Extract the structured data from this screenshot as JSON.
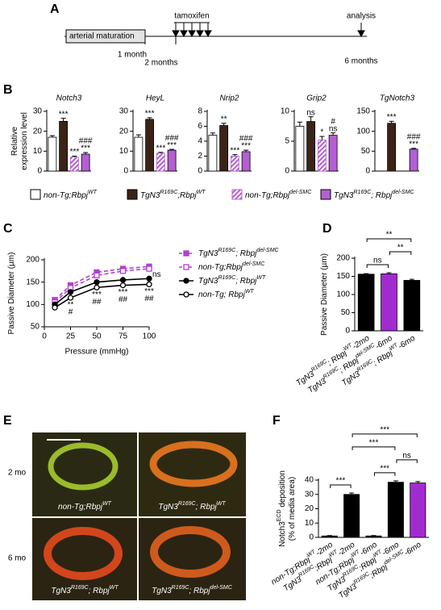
{
  "panel_labels": [
    "A",
    "B",
    "C",
    "D",
    "E",
    "F"
  ],
  "timeline": {
    "box_label": "arterial maturation",
    "drug": "tamoxifen",
    "endpoint": "analysis",
    "times": [
      "1 month",
      "2 months",
      "6 months"
    ]
  },
  "legend_b": {
    "entries": [
      {
        "name": [
          "non-Tg;Rbpj",
          "WT"
        ],
        "color": "#ffffff",
        "pattern": "solid"
      },
      {
        "name": [
          "TgN3",
          "R169C",
          ";Rbpj",
          "WT"
        ],
        "color": "#3b2417",
        "pattern": "solid"
      },
      {
        "name": [
          "non-Tg;Rbpj",
          "del-SMC"
        ],
        "color": "#b45fd2",
        "pattern": "hatch"
      },
      {
        "name": [
          "TgN3",
          "R169C",
          "; Rbpj",
          "del-SMC"
        ],
        "color": "#b45fd2",
        "pattern": "solid"
      }
    ]
  },
  "images": {
    "row_labels": [
      "2 mo",
      "6 mo"
    ],
    "captions": [
      [
        "non-Tg;Rbpj",
        "WT"
      ],
      [
        "TgN3",
        "R169C",
        "; Rbpj",
        "WT"
      ],
      [
        "TgN3",
        "R169C",
        "; Rbpj",
        "WT"
      ],
      [
        "TgN3",
        "R169C",
        "; Rbpj",
        "del-SMC"
      ]
    ]
  },
  "chart_data": [
    {
      "type": "bar",
      "title": "Notch3",
      "ylabel": [
        [
          "Relative"
        ],
        [
          "expression level"
        ]
      ],
      "values": [
        17,
        25,
        7,
        8.5
      ],
      "errors": [
        0.8,
        1.5,
        0.5,
        0.8
      ],
      "ylim": [
        0,
        30
      ],
      "yticks": [
        0,
        10,
        20,
        30
      ],
      "annotations": [
        [],
        [
          "***"
        ],
        [
          "***"
        ],
        [
          "###",
          "***"
        ]
      ]
    },
    {
      "type": "bar",
      "title": "HeyL",
      "values": [
        17,
        26,
        9,
        10.5
      ],
      "errors": [
        1.2,
        0.8,
        0.4,
        0.4
      ],
      "ylim": [
        0,
        30
      ],
      "yticks": [
        0,
        10,
        20,
        30
      ],
      "annotations": [
        [],
        [
          "***"
        ],
        [
          "***"
        ],
        [
          "###",
          "***"
        ]
      ]
    },
    {
      "type": "bar",
      "title": "Nrip2",
      "values": [
        4.8,
        6.1,
        2,
        2.6
      ],
      "errors": [
        0.3,
        0.3,
        0.2,
        0.2
      ],
      "ylim": [
        0,
        8
      ],
      "yticks": [
        0,
        2,
        4,
        6,
        8
      ],
      "annotations": [
        [],
        [
          "**"
        ],
        [
          "***"
        ],
        [
          "###",
          "***"
        ]
      ]
    },
    {
      "type": "bar",
      "title": "Grip2",
      "values": [
        7.5,
        8.3,
        5.2,
        6.0
      ],
      "errors": [
        0.7,
        0.8,
        0.6,
        0.4
      ],
      "ylim": [
        0,
        10
      ],
      "yticks": [
        0,
        5,
        10
      ],
      "annotations": [
        [],
        [
          "ns"
        ],
        [
          "*"
        ],
        [
          "#",
          "ns"
        ]
      ]
    },
    {
      "type": "bar",
      "title": "TgNotch3",
      "values": [
        null,
        120,
        null,
        55
      ],
      "errors": [
        null,
        5,
        null,
        2
      ],
      "ylim": [
        0,
        150
      ],
      "yticks": [
        0,
        50,
        100,
        150
      ],
      "annotations": [
        [],
        [
          "***"
        ],
        [],
        [
          "###",
          "***"
        ]
      ]
    },
    {
      "type": "line",
      "xlabel": "Pressure (mmHg)",
      "ylabel": [
        [
          "Passive Diameter (µm)"
        ]
      ],
      "x": [
        10,
        25,
        50,
        75,
        100
      ],
      "xlim": [
        0,
        100
      ],
      "xticks": [
        0,
        25,
        50,
        75,
        100
      ],
      "ylim": [
        50,
        200
      ],
      "yticks": [
        50,
        100,
        150,
        200
      ],
      "series": [
        {
          "name": [
            "TgN3",
            "R169C",
            "; Rbpj",
            "del-SMC"
          ],
          "color": "#b23fd1",
          "marker": "square",
          "filled": true,
          "dashed": true,
          "values": [
            110,
            143,
            172,
            180,
            185
          ]
        },
        {
          "name": [
            "non-Tg;Rbpj",
            "del-SMC"
          ],
          "color": "#b23fd1",
          "marker": "square",
          "filled": false,
          "dashed": true,
          "values": [
            105,
            137,
            165,
            175,
            180
          ]
        },
        {
          "name": [
            "TgN3",
            "R169C",
            "; Rbpj",
            "WT"
          ],
          "color": "#000000",
          "marker": "circle",
          "filled": true,
          "dashed": false,
          "values": [
            100,
            128,
            150,
            155,
            158
          ]
        },
        {
          "name": [
            "non-Tg; Rbpj",
            "WT"
          ],
          "color": "#000000",
          "marker": "circle",
          "filled": false,
          "dashed": false,
          "values": [
            93,
            115,
            138,
            143,
            145
          ]
        }
      ],
      "annotations": [
        {
          "x": 25,
          "texts": [
            "**",
            "#"
          ]
        },
        {
          "x": 50,
          "texts": [
            "***",
            "##"
          ]
        },
        {
          "x": 75,
          "texts": [
            "***",
            "##"
          ]
        },
        {
          "x": 100,
          "texts": [
            "***",
            "##"
          ]
        }
      ],
      "side_label": "ns"
    },
    {
      "type": "bar",
      "ylabel": [
        [
          "Passive Diameter (µm)"
        ]
      ],
      "categories": [
        [
          "TgN3",
          "R169C",
          "; Rbpj",
          "WT",
          "-2mo"
        ],
        [
          "TgN3",
          "R169C",
          "; Rbpj",
          "del-SMC",
          "-6mo"
        ],
        [
          "TgN3",
          "R169C",
          "; Rbpj",
          "WT",
          "-6mo"
        ]
      ],
      "values": [
        156,
        157,
        139
      ],
      "errors": [
        1.5,
        3,
        3
      ],
      "colors": [
        "#000000",
        "#a22bd0",
        "#000000"
      ],
      "ylim": [
        0,
        200
      ],
      "yticks": [
        0,
        50,
        100,
        150,
        200
      ],
      "brackets": [
        {
          "from": 0,
          "to": 1,
          "label": "ns"
        },
        {
          "from": 1,
          "to": 2,
          "label": "**"
        },
        {
          "from": 0,
          "to": 2,
          "label": "**"
        }
      ]
    },
    {
      "type": "bar",
      "ylabel": [
        [
          "Notch3",
          "ECD",
          " deposition"
        ],
        [
          "(% of media area)"
        ]
      ],
      "categories": [
        [
          "non-Tg;Rbpj",
          "WT",
          "-2mo"
        ],
        [
          "TgN3",
          "R169C",
          ";Rbpj",
          "WT",
          "-2mo"
        ],
        [
          "non-Tg;Rbpj",
          "WT",
          "-6mo"
        ],
        [
          "TgN3",
          "R169C",
          ";Rbpj",
          "WT",
          "-6mo"
        ],
        [
          "TgN3",
          "R169C",
          ";Rbpj",
          "del-SMC",
          "-6mo"
        ]
      ],
      "values": [
        1,
        30,
        1,
        38.5,
        38
      ],
      "errors": [
        0.3,
        1,
        0.3,
        1,
        1
      ],
      "colors": [
        "#000000",
        "#000000",
        "#000000",
        "#000000",
        "#a22bd0"
      ],
      "ylim": [
        0,
        40
      ],
      "yticks": [
        0,
        10,
        20,
        30,
        40
      ],
      "brackets": [
        {
          "from": 0,
          "to": 1,
          "label": "***"
        },
        {
          "from": 2,
          "to": 3,
          "label": "***"
        },
        {
          "from": 3,
          "to": 4,
          "label": "ns"
        },
        {
          "from": 1,
          "to": 3,
          "label": "***"
        },
        {
          "from": 1,
          "to": 4,
          "label": "***"
        }
      ]
    }
  ]
}
